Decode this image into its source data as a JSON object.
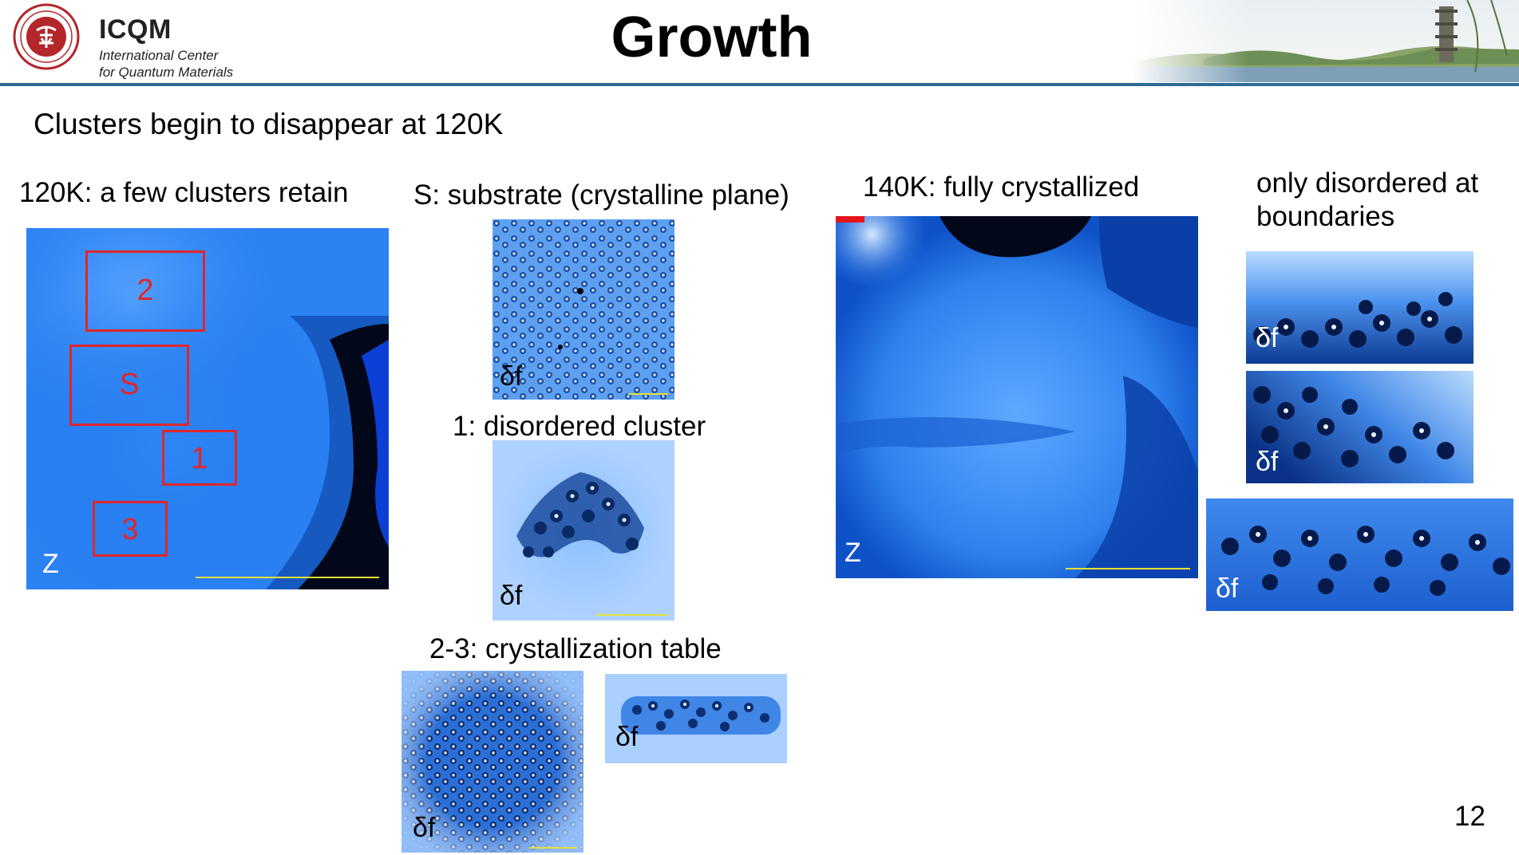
{
  "header": {
    "org_short": "ICQM",
    "org_line1": "International Center",
    "org_line2": "for Quantum Materials",
    "title": "Growth",
    "seal_text": "PEKING UNIVERSITY 1898"
  },
  "subtitle": "Clusters begin to disappear at 120K",
  "panels": {
    "left_label": "120K:  a few clusters retain",
    "left_tag": "Z",
    "boxes": [
      "2",
      "S",
      "1",
      "3"
    ],
    "substrate_label": "S: substrate (crystalline plane)",
    "cluster_label": "1: disordered cluster",
    "table_label": "2-3: crystallization table",
    "df_tag": "δf",
    "right_label": "140K:  fully crystallized",
    "right_tag": "Z",
    "boundary_label_line1": "only disordered at",
    "boundary_label_line2": "boundaries"
  },
  "page_number": "12",
  "colors": {
    "accent_rule": "#2e6b97",
    "box_red": "#e0262b",
    "stm_blue": "#1a6fe0"
  }
}
